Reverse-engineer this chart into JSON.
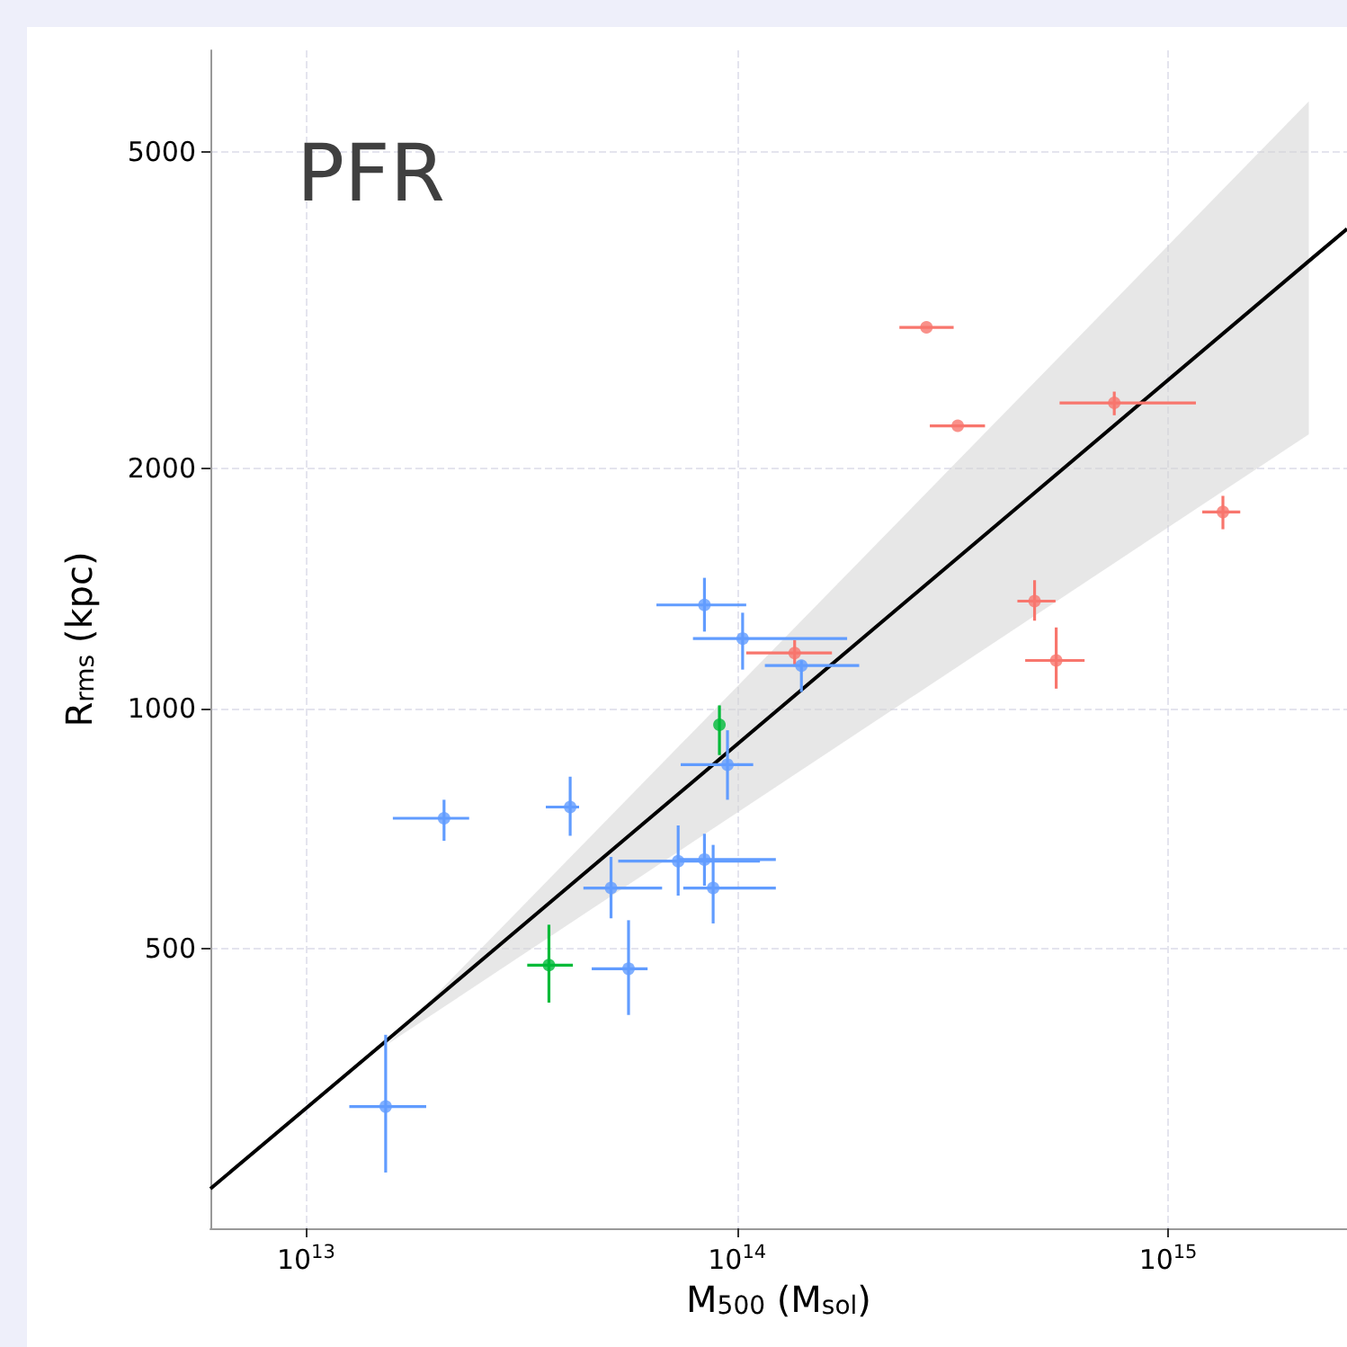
{
  "chart_data": {
    "type": "scatter",
    "xlabel": "M$_{500}$ (M$_{sol}$)",
    "ylabel": "R$_{rms}$ (kpc)",
    "annotations": [
      "PFR"
    ],
    "log": "xy",
    "grid": true,
    "marker": "circle",
    "xlim": [
      6000000000000.0,
      2600000000000000.0
    ],
    "ylim": [
      223,
      6700
    ],
    "xticks": [
      {
        "value": 10000000000000.0,
        "label": "10$^{13}$"
      },
      {
        "value": 100000000000000.0,
        "label": "10$^{14}$"
      },
      {
        "value": 1000000000000000.0,
        "label": "10$^{15}$"
      }
    ],
    "yticks": [
      500,
      1000,
      2000,
      5000
    ],
    "series": [
      {
        "color": "#f8766d",
        "x": [
          275000000000000.0,
          325000000000000.0,
          750000000000000.0,
          1340000000000000.0,
          490000000000000.0,
          550000000000000.0,
          136000000000000.0
        ],
        "values": [
          3010,
          2265,
          2420,
          1766,
          1365,
          1150,
          1175
        ],
        "errors": [
          null,
          null,
          [
            2335,
            2500
          ],
          [
            1680,
            1850
          ],
          [
            1290,
            1450
          ],
          [
            1060,
            1265
          ],
          [
            1130,
            1220
          ]
        ],
        "xerrors": [
          [
            238000000000000.0,
            318000000000000.0
          ],
          [
            280000000000000.0,
            376000000000000.0
          ],
          [
            560000000000000.0,
            1160000000000000.0
          ],
          [
            1200000000000000.0,
            1470000000000000.0
          ],
          [
            447000000000000.0,
            548000000000000.0
          ],
          [
            466000000000000.0,
            640000000000000.0
          ],
          [
            105000000000000.0,
            166000000000000.0
          ]
        ]
      },
      {
        "color": "#619cff",
        "x": [
          84000000000000.0,
          103000000000000.0,
          141000000000000.0,
          95000000000000.0,
          20900000000000.0,
          41000000000000.0,
          73000000000000.0,
          84000000000000.0,
          51000000000000.0,
          88000000000000.0,
          56000000000000.0,
          15300000000000.0
        ],
        "values": [
          1350,
          1225,
          1133,
          851,
          729,
          753,
          644,
          647,
          596,
          596,
          472,
          317
        ],
        "errors": [
          [
            1250,
            1460
          ],
          [
            1120,
            1320
          ],
          [
            1050,
            1150
          ],
          [
            769,
            940
          ],
          [
            683,
            769
          ],
          [
            693,
            822
          ],
          [
            583,
            714
          ],
          [
            600,
            697
          ],
          [
            546,
            652
          ],
          [
            538,
            675
          ],
          [
            413,
            543
          ],
          [
            262,
            390
          ]
        ],
        "xerrors": [
          [
            65000000000000.0,
            105000000000000.0
          ],
          [
            79000000000000.0,
            180000000000000.0
          ],
          [
            116000000000000.0,
            192000000000000.0
          ],
          [
            74000000000000.0,
            109000000000000.0
          ],
          [
            15900000000000.0,
            23900000000000.0
          ],
          [
            36000000000000.0,
            43000000000000.0
          ],
          [
            53000000000000.0,
            113000000000000.0
          ],
          [
            73000000000000.0,
            123000000000000.0
          ],
          [
            44000000000000.0,
            67000000000000.0
          ],
          [
            75000000000000.0,
            123000000000000.0
          ],
          [
            46000000000000.0,
            62000000000000.0
          ],
          [
            12600000000000.0,
            19000000000000.0
          ]
        ]
      },
      {
        "color": "#00ba38",
        "x": [
          91000000000000.0,
          36600000000000.0
        ],
        "values": [
          955,
          477
        ],
        "errors": [
          [
            875,
            1010
          ],
          [
            428,
            536
          ]
        ],
        "xerrors": [
          null,
          [
            32600000000000.0,
            41600000000000.0
          ]
        ]
      },
      {
        "type": "line",
        "marker": "none",
        "color": "#000000",
        "x": [
          6000000000000.0,
          15500000000000.0,
          2120000000000000.0,
          2600000000000000.0
        ],
        "values": [
          250,
          385,
          3645,
          4000
        ],
        "lower": [
          null,
          380,
          2210,
          null
        ],
        "upper": [
          null,
          380,
          5780,
          null
        ]
      }
    ]
  }
}
